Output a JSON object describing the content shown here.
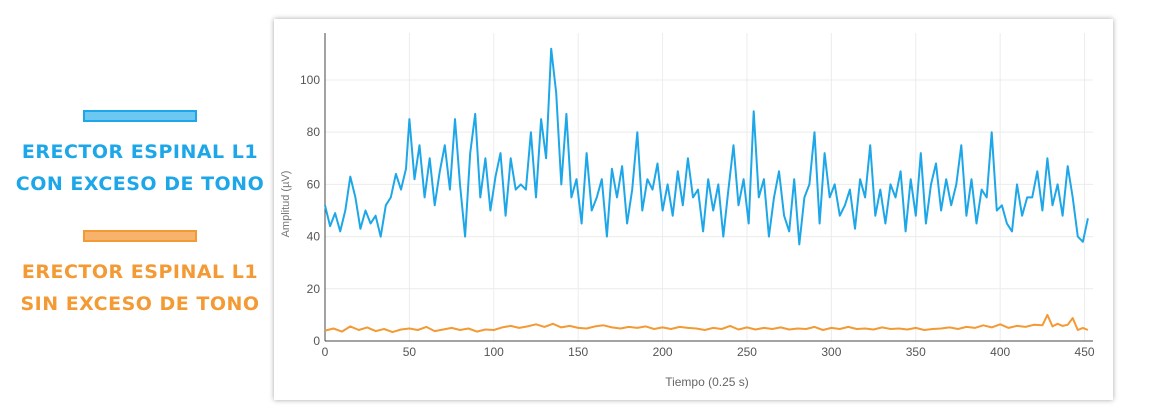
{
  "legend": {
    "items": [
      {
        "line1": "ERECTOR ESPINAL L1",
        "line2": "CON EXCESO DE TONO",
        "color": "#1ea7e8",
        "swatch_fill": "#6cc8f0"
      },
      {
        "line1": "ERECTOR ESPINAL L1",
        "line2": "SIN EXCESO DE TONO",
        "color": "#f39a35",
        "swatch_fill": "#f7b26c"
      }
    ]
  },
  "chart_data": {
    "type": "line",
    "xlabel": "Tiempo (0.25 s)",
    "ylabel": "Amplitud (µV)",
    "xlim": [
      0,
      455
    ],
    "ylim": [
      0,
      118
    ],
    "x_ticks": [
      0,
      50,
      100,
      150,
      200,
      250,
      300,
      350,
      400,
      450
    ],
    "y_ticks": [
      0,
      20,
      40,
      60,
      80,
      100
    ],
    "grid": true,
    "series": [
      {
        "color": "#1ea7e8",
        "x": [
          0,
          3,
          6,
          9,
          12,
          15,
          18,
          21,
          24,
          27,
          30,
          33,
          36,
          39,
          42,
          45,
          48,
          50,
          53,
          56,
          59,
          62,
          65,
          68,
          71,
          74,
          77,
          80,
          83,
          86,
          89,
          92,
          95,
          98,
          101,
          104,
          107,
          110,
          113,
          116,
          119,
          122,
          125,
          128,
          131,
          134,
          137,
          140,
          143,
          146,
          149,
          152,
          155,
          158,
          161,
          164,
          167,
          170,
          173,
          176,
          179,
          182,
          185,
          188,
          191,
          194,
          197,
          200,
          203,
          206,
          209,
          212,
          215,
          218,
          221,
          224,
          227,
          230,
          233,
          236,
          239,
          242,
          245,
          248,
          251,
          254,
          257,
          260,
          263,
          266,
          269,
          272,
          275,
          278,
          281,
          284,
          287,
          290,
          293,
          296,
          299,
          302,
          305,
          308,
          311,
          314,
          317,
          320,
          323,
          326,
          329,
          332,
          335,
          338,
          341,
          344,
          347,
          350,
          353,
          356,
          359,
          362,
          365,
          368,
          371,
          374,
          377,
          380,
          383,
          386,
          389,
          392,
          395,
          398,
          401,
          404,
          407,
          410,
          413,
          416,
          419,
          422,
          425,
          428,
          431,
          434,
          437,
          440,
          443,
          446,
          449,
          452
        ],
        "values": [
          52,
          44,
          49,
          42,
          50,
          63,
          55,
          43,
          50,
          45,
          48,
          40,
          52,
          55,
          64,
          58,
          66,
          85,
          62,
          75,
          55,
          70,
          52,
          65,
          75,
          58,
          85,
          60,
          40,
          72,
          87,
          55,
          70,
          50,
          63,
          72,
          48,
          70,
          58,
          60,
          58,
          80,
          55,
          85,
          70,
          112,
          95,
          60,
          87,
          55,
          62,
          45,
          72,
          50,
          55,
          62,
          40,
          66,
          55,
          67,
          45,
          58,
          80,
          50,
          62,
          58,
          68,
          50,
          60,
          48,
          65,
          52,
          70,
          55,
          58,
          42,
          62,
          50,
          60,
          40,
          58,
          75,
          52,
          62,
          45,
          88,
          55,
          62,
          40,
          55,
          65,
          48,
          42,
          62,
          37,
          55,
          60,
          80,
          45,
          72,
          55,
          60,
          48,
          52,
          58,
          43,
          62,
          55,
          75,
          48,
          58,
          45,
          60,
          55,
          65,
          42,
          62,
          48,
          72,
          45,
          60,
          68,
          50,
          62,
          52,
          60,
          75,
          48,
          62,
          45,
          58,
          55,
          80,
          50,
          52,
          45,
          42,
          60,
          48,
          55,
          55,
          65,
          50,
          70,
          52,
          60,
          48,
          67,
          55,
          40,
          38,
          47
        ],
        "linewidth": 2
      },
      {
        "color": "#f39a35",
        "x": [
          0,
          5,
          10,
          15,
          20,
          25,
          30,
          35,
          40,
          45,
          50,
          55,
          60,
          65,
          70,
          75,
          80,
          85,
          90,
          95,
          100,
          105,
          110,
          115,
          120,
          125,
          130,
          135,
          140,
          145,
          150,
          155,
          160,
          165,
          170,
          175,
          180,
          185,
          190,
          195,
          200,
          205,
          210,
          215,
          220,
          225,
          230,
          235,
          240,
          245,
          250,
          255,
          260,
          265,
          270,
          275,
          280,
          285,
          290,
          295,
          300,
          305,
          310,
          315,
          320,
          325,
          330,
          335,
          340,
          345,
          350,
          355,
          360,
          365,
          370,
          375,
          380,
          385,
          390,
          395,
          400,
          405,
          410,
          415,
          420,
          425,
          428,
          431,
          434,
          437,
          440,
          443,
          446,
          449,
          452
        ],
        "values": [
          4,
          4.8,
          3.6,
          5.6,
          4.2,
          5.2,
          3.8,
          4.6,
          3.4,
          4.4,
          4.8,
          4.2,
          5.4,
          3.8,
          4.4,
          5.0,
          4.2,
          4.8,
          3.6,
          4.4,
          4.2,
          5.2,
          5.8,
          5.0,
          5.6,
          6.4,
          5.4,
          6.6,
          5.2,
          5.8,
          5.0,
          4.8,
          5.6,
          6.0,
          5.2,
          4.8,
          5.4,
          5.0,
          5.6,
          4.6,
          5.2,
          4.6,
          5.4,
          5.0,
          4.8,
          4.2,
          5.0,
          4.6,
          5.8,
          4.4,
          5.2,
          4.4,
          5.0,
          4.6,
          5.2,
          4.4,
          4.8,
          4.6,
          5.4,
          4.2,
          5.0,
          4.6,
          5.4,
          4.6,
          4.8,
          4.4,
          5.2,
          4.6,
          4.8,
          4.4,
          5.0,
          4.2,
          4.6,
          4.8,
          5.2,
          4.6,
          5.4,
          5.0,
          6.0,
          5.2,
          6.4,
          5.0,
          5.8,
          5.4,
          6.2,
          6.0,
          10.0,
          5.6,
          6.6,
          5.8,
          6.2,
          8.8,
          4.2,
          5.0,
          4.2
        ],
        "linewidth": 2
      }
    ]
  }
}
